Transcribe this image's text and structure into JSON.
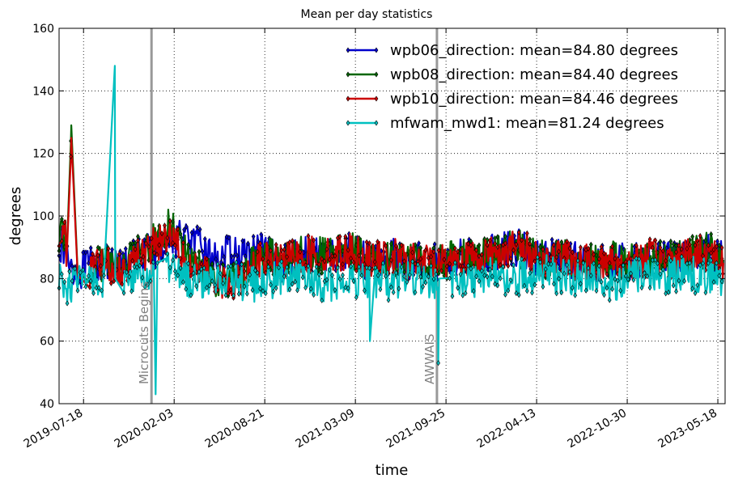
{
  "chart_data": {
    "type": "line",
    "title": "Mean per day statistics",
    "xlabel": "time",
    "ylabel": "degrees",
    "ylim": [
      40,
      160
    ],
    "xlim": [
      "2019-05-25",
      "2023-06-03"
    ],
    "yticks": [
      40,
      60,
      80,
      100,
      120,
      140,
      160
    ],
    "yticklabels": [
      "40",
      "60",
      "80",
      "100",
      "120",
      "140",
      "160"
    ],
    "xticks": [
      "2019-07-18",
      "2020-02-03",
      "2020-08-21",
      "2021-03-09",
      "2021-09-25",
      "2022-04-13",
      "2022-10-30",
      "2023-05-18"
    ],
    "xticklabels": [
      "2019-07-18",
      "2020-02-03",
      "2020-08-21",
      "2021-03-09",
      "2021-09-25",
      "2022-04-13",
      "2022-10-30",
      "2023-05-18"
    ],
    "grid": true,
    "legend_position": "top-right",
    "annotations": [
      {
        "date": "2019-12-15",
        "label": "Microcuts Begins",
        "color": "#999999"
      },
      {
        "date": "2021-09-05",
        "label": "AWWAIS",
        "color": "#999999"
      }
    ],
    "series": [
      {
        "name": "wpb06_direction",
        "legend": "wpb06_direction: mean=84.80 degrees",
        "color": "#0000cc",
        "dates": [
          "2019-05-25",
          "2019-06-15",
          "2019-07-05",
          "2019-08-01",
          "2019-09-01",
          "2019-10-01",
          "2019-11-01",
          "2019-12-01",
          "2020-01-01",
          "2020-02-01",
          "2020-03-01",
          "2020-04-01",
          "2020-05-01",
          "2020-06-01",
          "2020-07-01",
          "2020-08-01",
          "2020-09-01",
          "2020-10-01",
          "2020-11-01",
          "2020-12-01",
          "2021-01-01",
          "2021-02-01",
          "2021-03-01",
          "2021-04-01",
          "2021-05-01",
          "2021-06-01",
          "2021-07-01",
          "2021-08-01",
          "2021-09-01",
          "2021-10-01",
          "2021-11-01",
          "2021-12-01",
          "2022-01-01",
          "2022-02-01",
          "2022-03-01",
          "2022-04-01",
          "2022-05-01",
          "2022-06-01",
          "2022-07-01",
          "2022-08-01",
          "2022-09-01",
          "2022-10-01",
          "2022-11-01",
          "2022-12-01",
          "2023-01-01",
          "2023-02-01",
          "2023-03-01",
          "2023-04-01",
          "2023-05-01",
          "2023-05-30"
        ],
        "values": [
          92,
          86,
          82,
          84,
          85,
          83,
          86,
          88,
          90,
          93,
          93,
          90,
          86,
          88,
          87,
          89,
          87,
          85,
          88,
          88,
          87,
          88,
          89,
          86,
          86,
          87,
          85,
          86,
          85,
          86,
          87,
          86,
          88,
          89,
          90,
          88,
          86,
          87,
          86,
          85,
          85,
          86,
          85,
          86,
          87,
          86,
          87,
          88,
          89,
          86
        ]
      },
      {
        "name": "wpb08_direction",
        "legend": "wpb08_direction: mean=84.40 degrees",
        "color": "#006600",
        "dates": [
          "2019-05-25",
          "2019-06-10",
          "2019-06-20",
          "2019-06-21",
          "2019-07-05",
          "2019-08-01",
          "2019-09-01",
          "2019-10-01",
          "2019-11-01",
          "2019-12-01",
          "2020-01-01",
          "2020-02-01",
          "2020-03-01",
          "2020-04-01",
          "2020-05-01",
          "2020-06-01",
          "2020-07-01",
          "2020-08-01",
          "2020-09-01",
          "2020-10-01",
          "2020-11-01",
          "2020-12-01",
          "2021-01-01",
          "2021-02-01",
          "2021-03-01",
          "2021-04-01",
          "2021-05-01",
          "2021-06-01",
          "2021-07-01",
          "2021-08-01",
          "2021-09-01",
          "2021-10-01",
          "2021-11-01",
          "2021-12-01",
          "2022-01-01",
          "2022-02-01",
          "2022-03-01",
          "2022-04-01",
          "2022-05-01",
          "2022-06-01",
          "2022-07-01",
          "2022-08-01",
          "2022-09-01",
          "2022-10-01",
          "2022-11-01",
          "2022-12-01",
          "2023-01-01",
          "2023-02-01",
          "2023-03-01",
          "2023-04-01",
          "2023-05-01",
          "2023-05-30"
        ],
        "values": [
          93,
          85,
          124,
          129,
          82,
          84,
          85,
          84,
          87,
          89,
          94,
          98,
          88,
          83,
          80,
          79,
          82,
          86,
          87,
          85,
          88,
          88,
          87,
          88,
          89,
          86,
          86,
          87,
          85,
          86,
          85,
          86,
          87,
          86,
          88,
          89,
          90,
          88,
          86,
          87,
          86,
          85,
          85,
          86,
          85,
          86,
          87,
          86,
          87,
          88,
          89,
          86
        ]
      },
      {
        "name": "wpb10_direction",
        "legend": "wpb10_direction: mean=84.46 degrees",
        "color": "#cc0000",
        "dates": [
          "2019-05-25",
          "2019-06-10",
          "2019-06-20",
          "2019-06-21",
          "2019-07-05",
          "2019-08-01",
          "2019-09-01",
          "2019-10-01",
          "2019-11-01",
          "2019-12-01",
          "2020-01-01",
          "2020-02-01",
          "2020-03-01",
          "2020-04-01",
          "2020-05-01",
          "2020-06-01",
          "2020-07-01",
          "2020-08-01",
          "2020-09-01",
          "2020-10-01",
          "2020-11-01",
          "2020-12-01",
          "2021-01-01",
          "2021-02-01",
          "2021-03-01",
          "2021-04-01",
          "2021-05-01",
          "2021-06-01",
          "2021-07-01",
          "2021-08-01",
          "2021-09-01",
          "2021-10-01",
          "2021-11-01",
          "2021-12-01",
          "2022-01-01",
          "2022-02-01",
          "2022-03-01",
          "2022-04-01",
          "2022-05-01",
          "2022-06-01",
          "2022-07-01",
          "2022-08-01",
          "2022-09-01",
          "2022-10-01",
          "2022-11-01",
          "2022-12-01",
          "2023-01-01",
          "2023-02-01",
          "2023-03-01",
          "2023-04-01",
          "2023-05-01",
          "2023-05-30"
        ],
        "values": [
          94,
          84,
          119,
          125,
          81,
          83,
          84,
          83,
          86,
          88,
          92,
          95,
          86,
          82,
          79,
          78,
          81,
          85,
          86,
          85,
          87,
          88,
          87,
          88,
          89,
          86,
          86,
          87,
          85,
          86,
          85,
          86,
          87,
          86,
          88,
          89,
          90,
          88,
          86,
          87,
          86,
          85,
          85,
          86,
          85,
          86,
          87,
          86,
          87,
          88,
          89,
          85
        ]
      },
      {
        "name": "mfwam_mwd1",
        "legend": "mfwam_mwd1: mean=81.24 degrees",
        "color": "#00c0c0",
        "dates": [
          "2019-05-25",
          "2019-06-15",
          "2019-07-05",
          "2019-08-01",
          "2019-09-01",
          "2019-09-25",
          "2019-09-26",
          "2019-10-15",
          "2019-11-01",
          "2019-12-01",
          "2019-12-20",
          "2019-12-24",
          "2019-12-28",
          "2020-01-15",
          "2020-02-01",
          "2020-03-01",
          "2020-04-01",
          "2020-05-01",
          "2020-06-01",
          "2020-07-01",
          "2020-08-01",
          "2020-09-01",
          "2020-10-01",
          "2020-11-01",
          "2020-12-01",
          "2021-01-01",
          "2021-02-01",
          "2021-03-01",
          "2021-04-01",
          "2021-04-10",
          "2021-04-20",
          "2021-05-01",
          "2021-06-01",
          "2021-07-01",
          "2021-08-01",
          "2021-09-01",
          "2021-09-08",
          "2021-09-10",
          "2021-10-01",
          "2021-11-01",
          "2021-12-01",
          "2022-01-01",
          "2022-02-01",
          "2022-03-01",
          "2022-04-01",
          "2022-05-01",
          "2022-06-01",
          "2022-07-01",
          "2022-08-01",
          "2022-09-01",
          "2022-10-01",
          "2022-11-01",
          "2022-12-01",
          "2023-01-01",
          "2023-02-01",
          "2023-03-01",
          "2023-04-01",
          "2023-05-01",
          "2023-05-30"
        ],
        "values": [
          80,
          77,
          79,
          80,
          81,
          148,
          80,
          78,
          79,
          81,
          84,
          43,
          85,
          82,
          83,
          80,
          79,
          80,
          80,
          79,
          78,
          79,
          80,
          80,
          79,
          78,
          79,
          80,
          79,
          60,
          80,
          79,
          79,
          80,
          79,
          78,
          53,
          80,
          80,
          79,
          80,
          81,
          80,
          80,
          81,
          82,
          81,
          80,
          80,
          79,
          79,
          80,
          81,
          80,
          81,
          82,
          81,
          81,
          80
        ]
      }
    ]
  }
}
